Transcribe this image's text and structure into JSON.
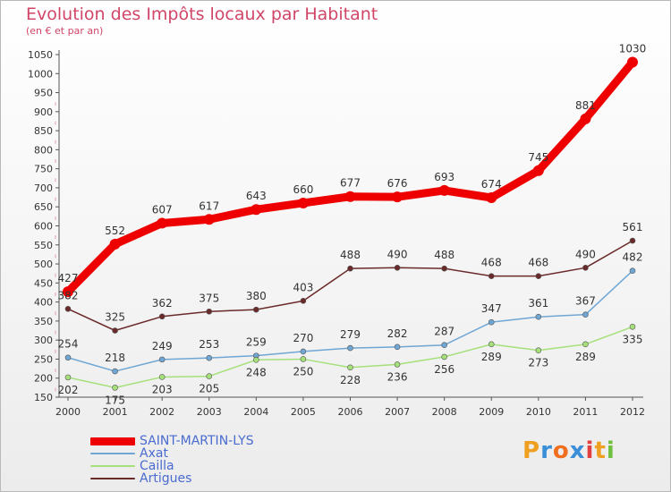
{
  "header": {
    "title": "Evolution des Impôts locaux par Habitant",
    "subtitle": "(en € et par an)"
  },
  "logo": {
    "text": "Proxiti",
    "letter_colors": [
      "#f0a020",
      "#3a8fd8",
      "#f07020",
      "#3a8fd8",
      "#e04040",
      "#f0a020",
      "#70c040"
    ]
  },
  "chart_data": {
    "type": "line",
    "x": [
      "2000",
      "2001",
      "2002",
      "2003",
      "2004",
      "2005",
      "2006",
      "2007",
      "2008",
      "2009",
      "2010",
      "2011",
      "2012"
    ],
    "ylim": [
      150,
      1050
    ],
    "yticks": [
      150,
      200,
      250,
      300,
      350,
      400,
      450,
      500,
      550,
      600,
      650,
      700,
      750,
      800,
      850,
      900,
      950,
      1000,
      1050
    ],
    "grid": false,
    "legend_position": "bottom-left",
    "series": [
      {
        "name": "SAINT-MARTIN-LYS",
        "color": "#ee0000",
        "values": [
          427,
          552,
          607,
          617,
          643,
          660,
          677,
          676,
          693,
          674,
          745,
          881,
          1030
        ]
      },
      {
        "name": "Axat",
        "color": "#6fa6d4",
        "values": [
          254,
          218,
          249,
          253,
          259,
          270,
          279,
          282,
          287,
          347,
          361,
          367,
          482
        ]
      },
      {
        "name": "Cailla",
        "color": "#a6e07a",
        "values": [
          202,
          175,
          203,
          205,
          248,
          250,
          228,
          236,
          256,
          289,
          273,
          289,
          335
        ]
      },
      {
        "name": "Artigues",
        "color": "#6b2a2a",
        "values": [
          382,
          325,
          362,
          375,
          380,
          403,
          488,
          490,
          488,
          468,
          468,
          490,
          561
        ]
      }
    ]
  }
}
